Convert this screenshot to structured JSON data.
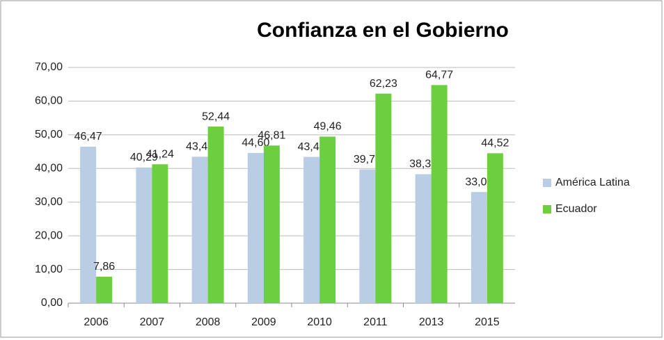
{
  "chart_data": {
    "type": "bar",
    "title": "Confianza en el Gobierno",
    "categories": [
      "2006",
      "2007",
      "2008",
      "2009",
      "2010",
      "2011",
      "2013",
      "2015"
    ],
    "series": [
      {
        "name": "América Latina",
        "color": "#b9cde5",
        "values": [
          46.47,
          40.29,
          43.48,
          44.6,
          43.44,
          39.72,
          38.3,
          33.0
        ],
        "value_labels": [
          "46,47",
          "40,29",
          "43,48",
          "44,60",
          "43,44",
          "39,72",
          "38,30",
          "33,00"
        ]
      },
      {
        "name": "Ecuador",
        "color": "#6ccf3f",
        "values": [
          7.86,
          41.24,
          52.44,
          46.81,
          49.46,
          62.23,
          64.77,
          44.52
        ],
        "value_labels": [
          "7,86",
          "41,24",
          "52,44",
          "46,81",
          "49,46",
          "62,23",
          "64,77",
          "44,52"
        ]
      }
    ],
    "ylim": [
      0,
      70
    ],
    "yticks": [
      {
        "value": 0,
        "label": "0,00"
      },
      {
        "value": 10,
        "label": "10,00"
      },
      {
        "value": 20,
        "label": "20,00"
      },
      {
        "value": 30,
        "label": "30,00"
      },
      {
        "value": 40,
        "label": "40,00"
      },
      {
        "value": 50,
        "label": "50,00"
      },
      {
        "value": 60,
        "label": "60,00"
      },
      {
        "value": 70,
        "label": "70,00"
      }
    ],
    "grid": true,
    "legend": "right"
  }
}
